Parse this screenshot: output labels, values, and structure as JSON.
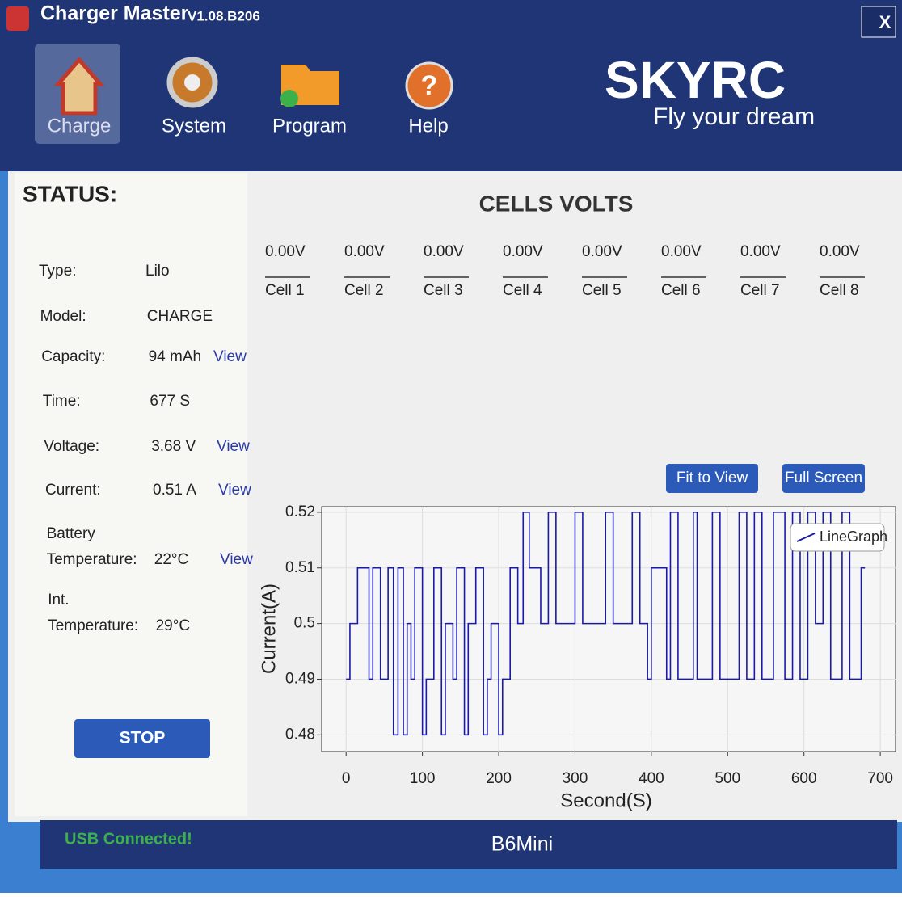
{
  "window": {
    "title": "Charger Master",
    "version": "V1.08.B206",
    "close": "X"
  },
  "nav": [
    {
      "label": "Charge"
    },
    {
      "label": "System"
    },
    {
      "label": "Program"
    },
    {
      "label": "Help"
    }
  ],
  "logo": {
    "brand": "SKYRC",
    "slogan": "Fly your dream"
  },
  "status": {
    "heading": "STATUS:",
    "rows": [
      {
        "label": [
          "Type:"
        ],
        "value": "Lilo"
      },
      {
        "label": [
          "Model:"
        ],
        "value": "CHARGE"
      },
      {
        "label": [
          "Capacity:"
        ],
        "value": "94 mAh",
        "link": "View"
      },
      {
        "label": [
          "Time:"
        ],
        "value": "677 S"
      },
      {
        "label": [
          "Voltage:"
        ],
        "value": "3.68 V",
        "link": "View"
      },
      {
        "label": [
          "Current:"
        ],
        "value": "0.51 A",
        "link": "View"
      },
      {
        "label": [
          "Battery",
          "Temperature:"
        ],
        "value": "22°C",
        "link": "View"
      },
      {
        "label": [
          "Int.",
          "Temperature:"
        ],
        "value": "29°C"
      }
    ],
    "button": "STOP"
  },
  "cells": {
    "heading": "CELLS VOLTS",
    "items": [
      {
        "value": "0.00V",
        "name": "Cell 1"
      },
      {
        "value": "0.00V",
        "name": "Cell 2"
      },
      {
        "value": "0.00V",
        "name": "Cell 3"
      },
      {
        "value": "0.00V",
        "name": "Cell 4"
      },
      {
        "value": "0.00V",
        "name": "Cell 5"
      },
      {
        "value": "0.00V",
        "name": "Cell 6"
      },
      {
        "value": "0.00V",
        "name": "Cell 7"
      },
      {
        "value": "0.00V",
        "name": "Cell 8"
      }
    ]
  },
  "buttons": {
    "fit": "Fit to View",
    "full": "Full Screen"
  },
  "chart_data": {
    "type": "line",
    "step": true,
    "x_label": "Second(S)",
    "y_label": "Current(A)",
    "xlim": [
      -32,
      720
    ],
    "ylim": [
      0.477,
      0.521
    ],
    "xticks": [
      0,
      100,
      200,
      300,
      400,
      500,
      600,
      700
    ],
    "yticks": [
      0.52,
      0.51,
      0.5,
      0.49,
      0.48
    ],
    "grid": true,
    "legend": "top-right",
    "series": [
      {
        "name": "LineGraph",
        "color": "#1a1aa8",
        "x": [
          0,
          5,
          15,
          30,
          35,
          45,
          55,
          62,
          68,
          75,
          80,
          85,
          90,
          100,
          105,
          115,
          125,
          130,
          140,
          145,
          155,
          160,
          170,
          180,
          185,
          190,
          200,
          205,
          215,
          225,
          232,
          240,
          255,
          265,
          275,
          300,
          310,
          340,
          350,
          375,
          385,
          395,
          400,
          420,
          425,
          435,
          455,
          460,
          480,
          490,
          515,
          525,
          535,
          545,
          560,
          575,
          585,
          595,
          605,
          615,
          625,
          635,
          650,
          660,
          675,
          680
        ],
        "values": [
          0.49,
          0.5,
          0.51,
          0.49,
          0.51,
          0.49,
          0.51,
          0.48,
          0.51,
          0.48,
          0.5,
          0.49,
          0.51,
          0.48,
          0.49,
          0.51,
          0.48,
          0.5,
          0.49,
          0.51,
          0.48,
          0.5,
          0.51,
          0.48,
          0.49,
          0.5,
          0.48,
          0.49,
          0.51,
          0.5,
          0.52,
          0.51,
          0.5,
          0.52,
          0.5,
          0.52,
          0.5,
          0.52,
          0.5,
          0.52,
          0.5,
          0.49,
          0.51,
          0.49,
          0.52,
          0.49,
          0.52,
          0.49,
          0.52,
          0.49,
          0.52,
          0.49,
          0.52,
          0.49,
          0.52,
          0.49,
          0.52,
          0.49,
          0.52,
          0.5,
          0.52,
          0.49,
          0.52,
          0.49,
          0.51,
          0.51
        ]
      }
    ]
  },
  "footer": {
    "connection": "USB Connected!",
    "device": "B6Mini"
  }
}
